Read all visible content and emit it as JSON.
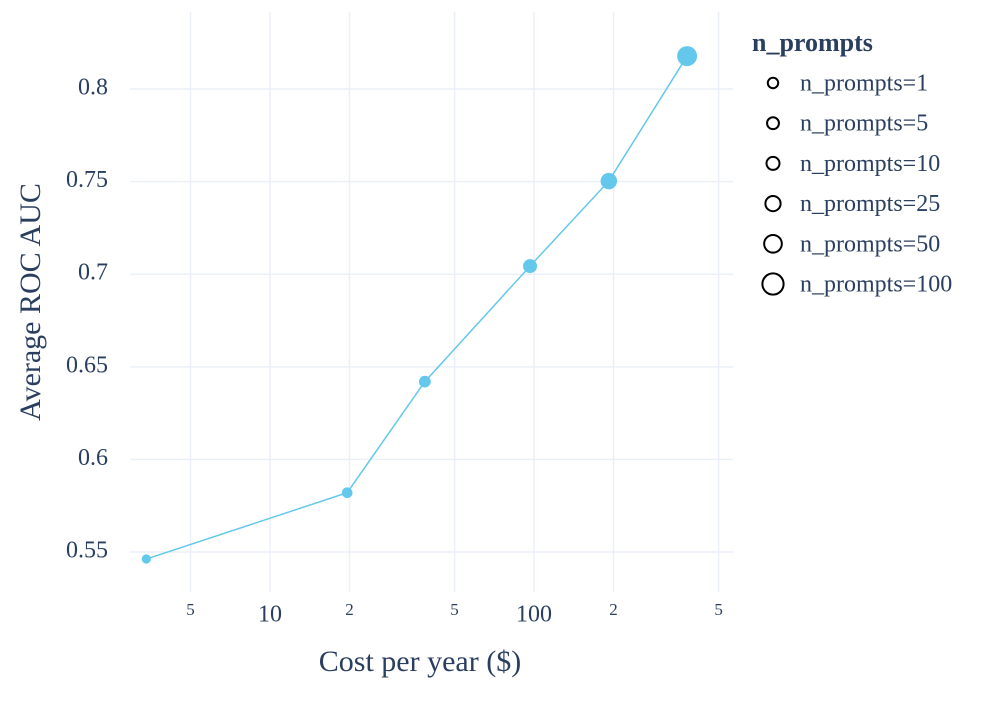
{
  "chart_data": {
    "type": "scatter",
    "x_label": "Cost per year ($)",
    "y_label": "Average ROC AUC",
    "log_x": true,
    "grid": true,
    "color": "#63c8ec",
    "x": [
      3.4,
      19.6,
      38.6,
      96.6,
      192,
      380
    ],
    "values": [
      0.5462,
      0.582,
      0.642,
      0.7044,
      0.7503,
      0.8178
    ],
    "sizes": [
      1,
      5,
      10,
      25,
      50,
      100
    ],
    "legend": {
      "title": "n_prompts",
      "labels": [
        "n_prompts=1",
        "n_prompts=5",
        "n_prompts=10",
        "n_prompts=25",
        "n_prompts=50",
        "n_prompts=100"
      ]
    },
    "xlim": [
      2.95,
      567
    ],
    "ylim": [
      0.5284,
      0.8416
    ],
    "xticks": [
      5,
      10,
      {
        "value": 20,
        "label": "2"
      },
      {
        "value": 50,
        "label": "5"
      },
      100,
      {
        "value": 200,
        "label": "2"
      },
      {
        "value": 500,
        "label": "5"
      }
    ],
    "yticks": [
      0.55,
      0.6,
      0.65,
      0.7,
      0.75,
      0.8
    ]
  }
}
